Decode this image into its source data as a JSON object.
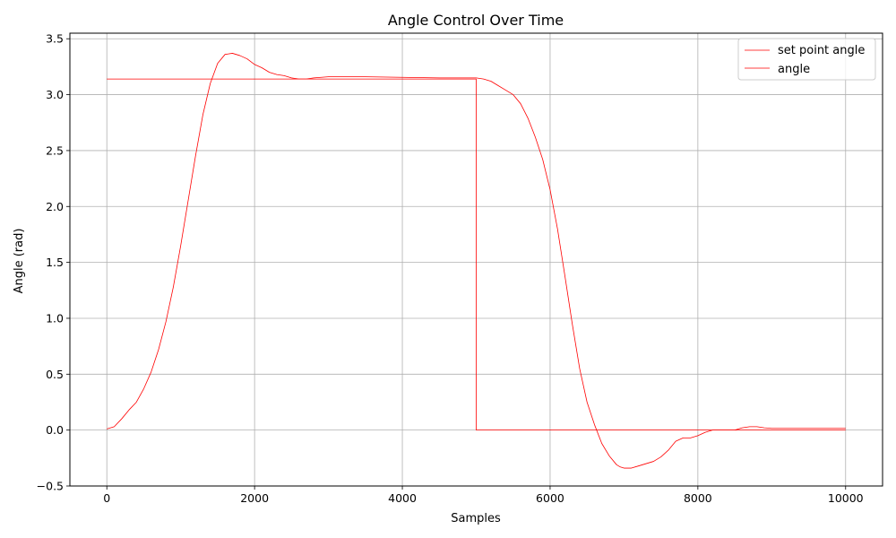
{
  "chart_data": {
    "type": "line",
    "title": "Angle Control Over Time",
    "xlabel": "Samples",
    "ylabel": "Angle (rad)",
    "xlim": [
      -500,
      10500
    ],
    "ylim": [
      -0.5,
      3.55
    ],
    "xticks": [
      0,
      2000,
      4000,
      6000,
      8000,
      10000
    ],
    "xtick_labels": [
      "0",
      "2000",
      "4000",
      "6000",
      "8000",
      "10000"
    ],
    "yticks": [
      -0.5,
      0.0,
      0.5,
      1.0,
      1.5,
      2.0,
      2.5,
      3.0,
      3.5
    ],
    "ytick_labels": [
      "−0.5",
      "0.0",
      "0.5",
      "1.0",
      "1.5",
      "2.0",
      "2.5",
      "3.0",
      "3.5"
    ],
    "grid": true,
    "legend_position": "top-right",
    "series": [
      {
        "name": "set point angle",
        "color": "#ff0000",
        "x": [
          0,
          5000,
          5000,
          10000
        ],
        "y": [
          3.14,
          3.14,
          0.0,
          0.0
        ]
      },
      {
        "name": "angle",
        "color": "#ff0000",
        "x": [
          0,
          100,
          200,
          300,
          400,
          500,
          600,
          700,
          800,
          900,
          1000,
          1100,
          1200,
          1300,
          1400,
          1500,
          1600,
          1700,
          1750,
          1800,
          1900,
          2000,
          2100,
          2200,
          2300,
          2400,
          2500,
          2600,
          2650,
          2700,
          2800,
          3000,
          3500,
          4000,
          4500,
          5000,
          5100,
          5200,
          5300,
          5400,
          5500,
          5600,
          5700,
          5800,
          5900,
          6000,
          6100,
          6200,
          6300,
          6400,
          6500,
          6600,
          6700,
          6800,
          6900,
          6950,
          7000,
          7100,
          7200,
          7300,
          7400,
          7500,
          7600,
          7700,
          7800,
          7900,
          8000,
          8100,
          8200,
          8300,
          8500,
          8600,
          8700,
          8800,
          8900,
          9000,
          9500,
          10000
        ],
        "y": [
          0.01,
          0.03,
          0.1,
          0.18,
          0.25,
          0.37,
          0.52,
          0.72,
          0.97,
          1.28,
          1.65,
          2.05,
          2.45,
          2.82,
          3.1,
          3.28,
          3.36,
          3.37,
          3.36,
          3.35,
          3.32,
          3.27,
          3.24,
          3.2,
          3.18,
          3.17,
          3.15,
          3.14,
          3.14,
          3.14,
          3.15,
          3.16,
          3.16,
          3.155,
          3.15,
          3.15,
          3.14,
          3.12,
          3.08,
          3.04,
          3.0,
          2.92,
          2.79,
          2.62,
          2.42,
          2.15,
          1.8,
          1.38,
          0.95,
          0.55,
          0.25,
          0.05,
          -0.12,
          -0.23,
          -0.31,
          -0.33,
          -0.34,
          -0.34,
          -0.32,
          -0.3,
          -0.28,
          -0.24,
          -0.18,
          -0.1,
          -0.07,
          -0.07,
          -0.05,
          -0.02,
          0.0,
          0.0,
          0.0,
          0.02,
          0.03,
          0.03,
          0.02,
          0.015,
          0.015,
          0.015
        ]
      }
    ]
  }
}
